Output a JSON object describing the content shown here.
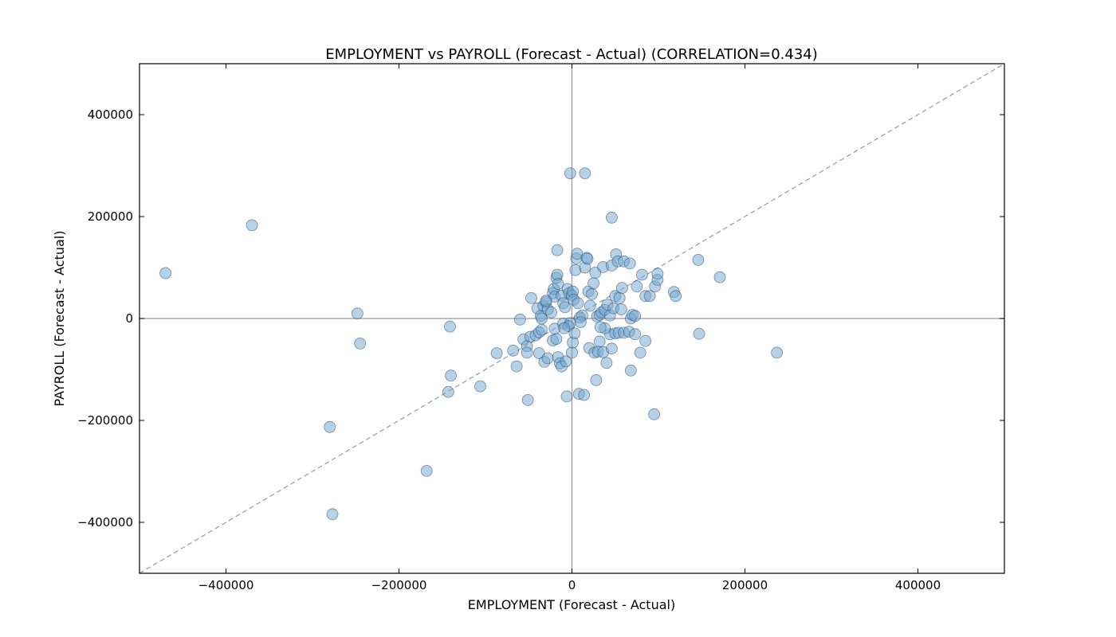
{
  "chart_data": {
    "type": "scatter",
    "title": "EMPLOYMENT vs PAYROLL (Forecast - Actual) (CORRELATION=0.434)",
    "xlabel": "EMPLOYMENT (Forecast - Actual)",
    "ylabel": "PAYROLL (Forecast - Actual)",
    "xlim": [
      -500000,
      500000
    ],
    "ylim": [
      -500000,
      500000
    ],
    "x_ticks": [
      -400000,
      -200000,
      0,
      200000,
      400000
    ],
    "y_ticks": [
      -400000,
      -200000,
      0,
      200000,
      400000
    ],
    "x_tick_labels": [
      "−400000",
      "−200000",
      "0",
      "200000",
      "400000"
    ],
    "y_tick_labels": [
      "−400000",
      "−200000",
      "0",
      "200000",
      "400000"
    ],
    "grid": false,
    "zero_lines": true,
    "reference_line": "y = x (dashed)",
    "colors": {
      "marker_fill": "#6fa6cf",
      "marker_opacity": 0.5,
      "marker_edge": "#2a4a6a",
      "zero_line": "#999999",
      "reference_line": "#999999"
    },
    "points": [
      [
        -470000,
        89000
      ],
      [
        -370000,
        183000
      ],
      [
        -248000,
        10000
      ],
      [
        -245000,
        -49000
      ],
      [
        -280000,
        -213000
      ],
      [
        -277000,
        -384000
      ],
      [
        -168000,
        -299000
      ],
      [
        -141000,
        -16000
      ],
      [
        -140000,
        -112000
      ],
      [
        -143000,
        -144000
      ],
      [
        -106000,
        -133000
      ],
      [
        -87000,
        -68000
      ],
      [
        -68000,
        -63000
      ],
      [
        -64000,
        -94000
      ],
      [
        -60000,
        -2000
      ],
      [
        -56000,
        -41000
      ],
      [
        -52000,
        -54000
      ],
      [
        -52000,
        -67000
      ],
      [
        -48000,
        -36000
      ],
      [
        -51000,
        -160000
      ],
      [
        -42000,
        -33000
      ],
      [
        -38000,
        -27000
      ],
      [
        -35000,
        -22000
      ],
      [
        -38000,
        -68000
      ],
      [
        -32000,
        -85000
      ],
      [
        -28000,
        -78000
      ],
      [
        -22000,
        -43000
      ],
      [
        -18000,
        -40000
      ],
      [
        -20000,
        -20000
      ],
      [
        -16000,
        -76000
      ],
      [
        -14000,
        -88000
      ],
      [
        -12000,
        -94000
      ],
      [
        -10000,
        -10000
      ],
      [
        -7000,
        -84000
      ],
      [
        -6000,
        -153000
      ],
      [
        -2000,
        -9000
      ],
      [
        -4000,
        -15000
      ],
      [
        0,
        -67000
      ],
      [
        1000,
        -47000
      ],
      [
        3000,
        -29000
      ],
      [
        8000,
        -148000
      ],
      [
        14000,
        -150000
      ],
      [
        20000,
        -58000
      ],
      [
        26000,
        -67000
      ],
      [
        30000,
        -65000
      ],
      [
        36000,
        -66000
      ],
      [
        28000,
        -121000
      ],
      [
        40000,
        -87000
      ],
      [
        46000,
        -59000
      ],
      [
        32000,
        -45000
      ],
      [
        44000,
        -31000
      ],
      [
        50000,
        -29000
      ],
      [
        54000,
        -28000
      ],
      [
        60000,
        -28000
      ],
      [
        66000,
        -26000
      ],
      [
        68000,
        -102000
      ],
      [
        73000,
        -31000
      ],
      [
        79000,
        -67000
      ],
      [
        85000,
        -44000
      ],
      [
        95000,
        -188000
      ],
      [
        147000,
        -30000
      ],
      [
        237000,
        -67000
      ],
      [
        -47000,
        40000
      ],
      [
        -40000,
        20000
      ],
      [
        -36000,
        5000
      ],
      [
        -33000,
        25000
      ],
      [
        -30000,
        32000
      ],
      [
        -28000,
        18000
      ],
      [
        -24000,
        12000
      ],
      [
        -22000,
        50000
      ],
      [
        -21000,
        58000
      ],
      [
        -20000,
        43000
      ],
      [
        -18000,
        80000
      ],
      [
        -17000,
        86000
      ],
      [
        -16000,
        68000
      ],
      [
        -17000,
        134000
      ],
      [
        -12000,
        45000
      ],
      [
        -10000,
        30000
      ],
      [
        -8000,
        22000
      ],
      [
        -5000,
        58000
      ],
      [
        -3000,
        50000
      ],
      [
        0,
        45000
      ],
      [
        1000,
        53000
      ],
      [
        2000,
        37000
      ],
      [
        4000,
        95000
      ],
      [
        5000,
        118000
      ],
      [
        6000,
        127000
      ],
      [
        7000,
        30000
      ],
      [
        9000,
        2000
      ],
      [
        12000,
        6000
      ],
      [
        15000,
        100000
      ],
      [
        17000,
        119000
      ],
      [
        18000,
        117000
      ],
      [
        19000,
        53000
      ],
      [
        21000,
        25000
      ],
      [
        23000,
        48000
      ],
      [
        25000,
        69000
      ],
      [
        27000,
        90000
      ],
      [
        29000,
        4000
      ],
      [
        32000,
        7000
      ],
      [
        34000,
        12000
      ],
      [
        36000,
        101000
      ],
      [
        38000,
        17000
      ],
      [
        41000,
        27000
      ],
      [
        44000,
        6000
      ],
      [
        46000,
        104000
      ],
      [
        48000,
        20000
      ],
      [
        50000,
        44000
      ],
      [
        51000,
        126000
      ],
      [
        53000,
        112000
      ],
      [
        55000,
        40000
      ],
      [
        57000,
        18000
      ],
      [
        58000,
        60000
      ],
      [
        60000,
        112000
      ],
      [
        67000,
        108000
      ],
      [
        68000,
        0
      ],
      [
        70000,
        7000
      ],
      [
        73000,
        5000
      ],
      [
        75000,
        63000
      ],
      [
        81000,
        86000
      ],
      [
        85000,
        44000
      ],
      [
        90000,
        44000
      ],
      [
        96000,
        63000
      ],
      [
        99000,
        76000
      ],
      [
        99000,
        88000
      ],
      [
        118000,
        52000
      ],
      [
        120000,
        44000
      ],
      [
        146000,
        115000
      ],
      [
        171000,
        81000
      ],
      [
        -2000,
        285000
      ],
      [
        15000,
        285000
      ],
      [
        46000,
        198000
      ],
      [
        -30000,
        35000
      ],
      [
        -35000,
        0
      ],
      [
        -9000,
        -19000
      ],
      [
        10000,
        -7000
      ],
      [
        38000,
        -19000
      ],
      [
        33000,
        -17000
      ]
    ]
  }
}
